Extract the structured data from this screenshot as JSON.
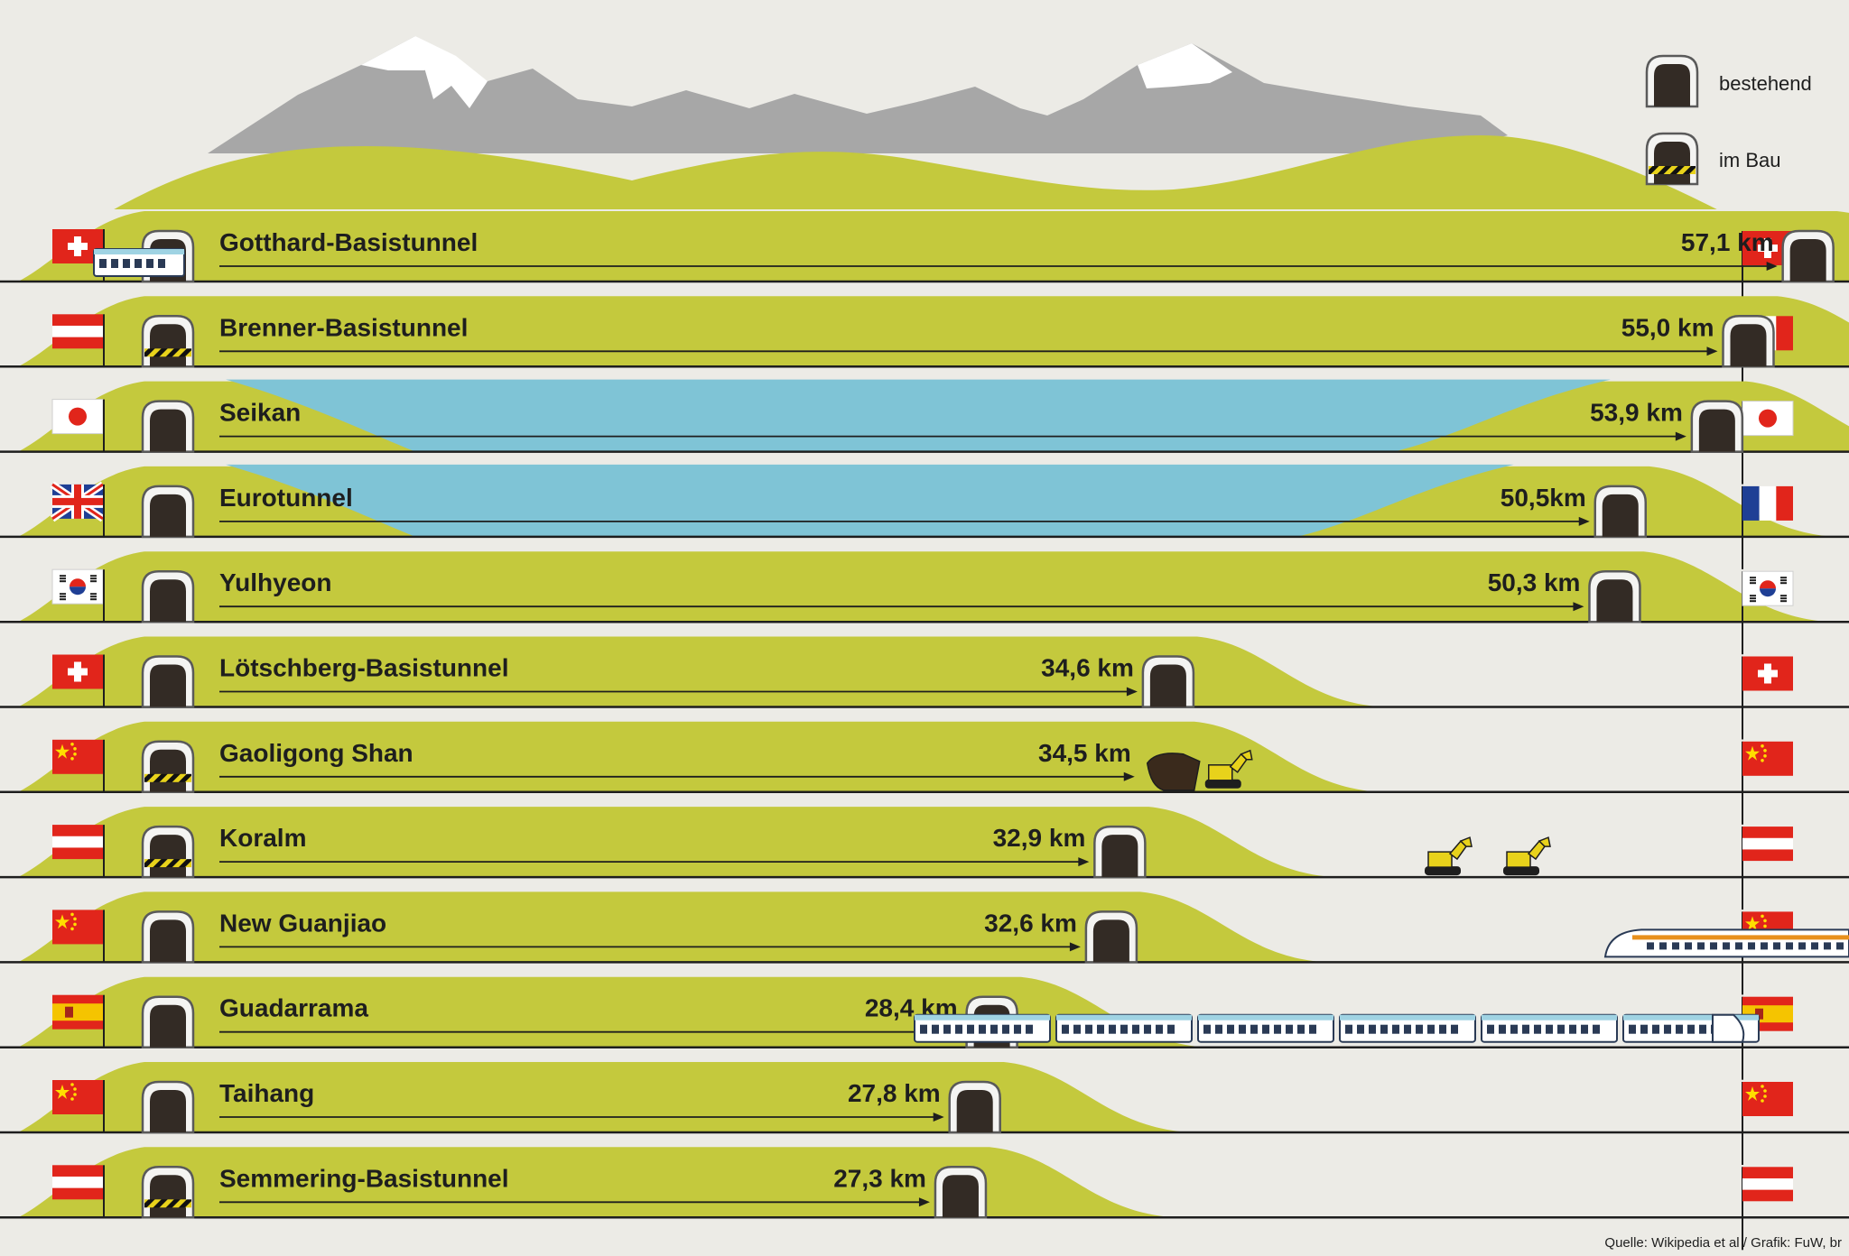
{
  "legend": {
    "existing_label": "bestehend",
    "construction_label": "im Bau",
    "existing_icon": "tunnel-portal-icon",
    "construction_icon": "tunnel-portal-striped-icon"
  },
  "source": "Quelle: Wikipedia et al / Grafik: FuW, br",
  "colors": {
    "background": "#ecebe6",
    "hill": "#c4c93d",
    "sea": "#7fc4d6",
    "mountain": "#a7a7a7",
    "snow": "#ffffff",
    "portal": "#332b25",
    "ground_line": "#1e1e1e",
    "machine": "#e8d21b"
  },
  "chart_data": {
    "type": "bar",
    "orientation": "horizontal",
    "unit": "km",
    "categories": [
      "Gotthard-Basistunnel",
      "Brenner-Basistunnel",
      "Seikan",
      "Eurotunnel",
      "Yulhyeon",
      "Lötschberg-Basistunnel",
      "Gaoligong Shan",
      "Koralm",
      "New Guanjiao",
      "Guadarrama",
      "Taihang",
      "Semmering-Basistunnel"
    ],
    "values": [
      57.1,
      55.0,
      53.9,
      50.5,
      50.3,
      34.6,
      34.5,
      32.9,
      32.6,
      28.4,
      27.8,
      27.3
    ],
    "value_labels": [
      "57,1 km",
      "55,0 km",
      "53,9 km",
      "50,5km",
      "50,3 km",
      "34,6 km",
      "34,5 km",
      "32,9 km",
      "32,6 km",
      "28,4 km",
      "27,8 km",
      "27,3 km"
    ],
    "status": [
      "bestehend",
      "im Bau",
      "bestehend",
      "bestehend",
      "bestehend",
      "bestehend",
      "im Bau",
      "im Bau",
      "bestehend",
      "bestehend",
      "bestehend",
      "im Bau"
    ],
    "undersea": [
      false,
      false,
      true,
      true,
      false,
      false,
      false,
      false,
      false,
      false,
      false,
      false
    ],
    "flags_start": [
      "switzerland",
      "austria",
      "japan",
      "united-kingdom",
      "south-korea",
      "switzerland",
      "china",
      "austria",
      "china",
      "spain",
      "china",
      "austria"
    ],
    "flags_end": [
      "switzerland",
      "italy",
      "japan",
      "france",
      "south-korea",
      "switzerland",
      "china",
      "austria",
      "china",
      "spain",
      "china",
      "austria"
    ],
    "xlim": [
      0,
      57.1
    ]
  }
}
